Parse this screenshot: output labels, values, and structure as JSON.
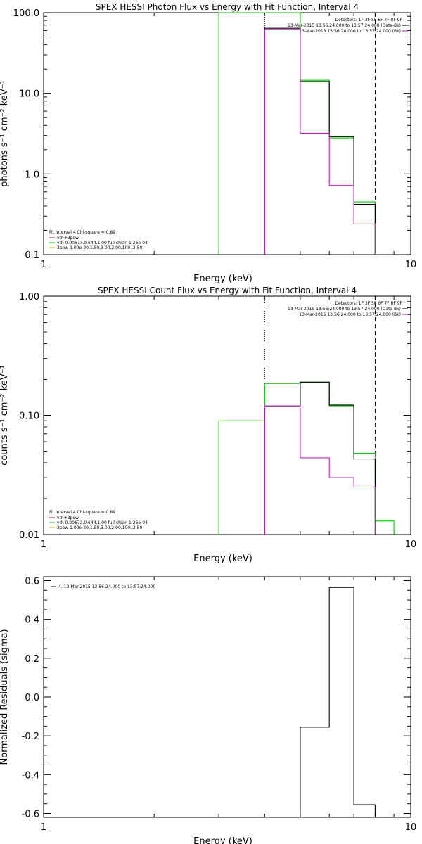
{
  "chart_data": [
    {
      "type": "line",
      "title": "SPEX HESSI Photon Flux vs Energy with Fit Function, Interval 4",
      "xlabel": "Energy (keV)",
      "ylabel": "photons s⁻¹ cm⁻² keV⁻¹",
      "xscale": "log",
      "yscale": "log",
      "xlim": [
        1,
        10
      ],
      "ylim": [
        0.1,
        100
      ],
      "xticks": [
        {
          "value": 1,
          "label": "1"
        },
        {
          "value": 10,
          "label": "10"
        }
      ],
      "yticks": [
        {
          "value": 0.1,
          "label": "0.1"
        },
        {
          "value": 1,
          "label": "1.0"
        },
        {
          "value": 10,
          "label": "10.0"
        },
        {
          "value": 100,
          "label": "100.0"
        }
      ],
      "vlines": [
        {
          "x": 4.0,
          "style": "dotted"
        },
        {
          "x": 8.0,
          "style": "dashed"
        }
      ],
      "legend_top_right": {
        "detectors": "Detectors: 1F 3F 5F 6F 7F 8F 9F",
        "entries": [
          {
            "label": "13-Mar-2015 13:56:24.000 to 13:57:24.000 (Data-Bk)",
            "color": "#000000"
          },
          {
            "label": "13-Mar-2015 13:56:24.000 to 13:57:24.000 (Bk)",
            "color": "#c020c0"
          }
        ]
      },
      "legend_bottom_left": {
        "header": "Fit Interval  4    Chi-square = 0.89",
        "entries": [
          {
            "label": "vth+3pow",
            "color": "#d02020"
          },
          {
            "label": "vth 0.00673,0.644,1.00   full chian 1.26e-04",
            "color": "#00c800"
          },
          {
            "label": "3pow 1.00e-20,1.50,3.00,2.00,100.,2.50",
            "color": "#e0b000"
          }
        ]
      },
      "series": [
        {
          "color": "#00c800",
          "edges": [
            3.0,
            4.0,
            5.0,
            6.0,
            7.0,
            8.0
          ],
          "values": [
            100,
            100,
            14.5,
            2.8,
            0.45
          ]
        },
        {
          "color": "#000000",
          "edges": [
            4.0,
            5.0,
            6.0,
            7.0,
            8.0
          ],
          "values": [
            64,
            14,
            2.9,
            0.42
          ]
        },
        {
          "color": "#c020c0",
          "edges": [
            4.0,
            5.0,
            6.0,
            7.0,
            8.0
          ],
          "values": [
            62,
            3.2,
            0.72,
            0.24
          ]
        }
      ]
    },
    {
      "type": "line",
      "title": "SPEX HESSI Count Flux vs Energy with Fit Function, Interval 4",
      "xlabel": "Energy (keV)",
      "ylabel": "counts s⁻¹ cm⁻² keV⁻¹",
      "xscale": "log",
      "yscale": "log",
      "xlim": [
        1,
        10
      ],
      "ylim": [
        0.01,
        1
      ],
      "xticks": [
        {
          "value": 1,
          "label": "1"
        },
        {
          "value": 10,
          "label": "10"
        }
      ],
      "yticks": [
        {
          "value": 0.01,
          "label": "0.01"
        },
        {
          "value": 0.1,
          "label": "0.10"
        },
        {
          "value": 1,
          "label": "1.00"
        }
      ],
      "vlines": [
        {
          "x": 4.0,
          "style": "dotted"
        },
        {
          "x": 8.0,
          "style": "dashed"
        }
      ],
      "legend_top_right": {
        "detectors": "Detectors: 1F 3F 5F 6F 7F 8F 9F",
        "entries": [
          {
            "label": "13-Mar-2015 13:56:24.000 to 13:57:24.000 (Data-Bk)",
            "color": "#000000"
          },
          {
            "label": "13-Mar-2015 13:56:24.000 to 13:57:24.000 (Bk)",
            "color": "#c020c0"
          }
        ]
      },
      "legend_bottom_left": {
        "header": "Fit Interval  4    Chi-square = 0.89",
        "entries": [
          {
            "label": "vth+3pow",
            "color": "#d02020"
          },
          {
            "label": "vth 0.00673,0.644,1.00   full chian 1.26e-04",
            "color": "#00c800"
          },
          {
            "label": "3pow 1.00e-20,1.50,3.00,2.00,100.,2.50",
            "color": "#e0b000"
          }
        ]
      },
      "series": [
        {
          "color": "#00c800",
          "edges": [
            3.0,
            4.0,
            5.0,
            6.0,
            7.0,
            8.0,
            9.0
          ],
          "values": [
            0.09,
            0.185,
            0.19,
            0.12,
            0.048,
            0.013
          ]
        },
        {
          "color": "#000000",
          "edges": [
            4.0,
            5.0,
            6.0,
            7.0,
            8.0
          ],
          "values": [
            0.118,
            0.19,
            0.122,
            0.043
          ]
        },
        {
          "color": "#c020c0",
          "edges": [
            4.0,
            5.0,
            6.0,
            7.0,
            8.0
          ],
          "values": [
            0.12,
            0.044,
            0.03,
            0.025
          ]
        }
      ]
    },
    {
      "type": "line",
      "title": "",
      "xlabel": "Energy (keV)",
      "ylabel": "Normalized Residuals (sigma)",
      "xscale": "log",
      "yscale": "linear",
      "xlim": [
        1,
        10
      ],
      "ylim": [
        -0.62,
        0.62
      ],
      "xticks": [
        {
          "value": 1,
          "label": "1"
        },
        {
          "value": 10,
          "label": "10"
        }
      ],
      "yticks": [
        {
          "value": -0.6,
          "label": "-0.6"
        },
        {
          "value": -0.4,
          "label": "-0.4"
        },
        {
          "value": -0.2,
          "label": "-0.2"
        },
        {
          "value": 0.0,
          "label": "0.0"
        },
        {
          "value": 0.2,
          "label": "0.2"
        },
        {
          "value": 0.4,
          "label": "0.4"
        },
        {
          "value": 0.6,
          "label": "0.6"
        }
      ],
      "legend_top_left": {
        "entries": [
          {
            "label": "4. 13-Mar-2015 13:56:24.000 to 13:57:24.000",
            "color": "#000000"
          }
        ]
      },
      "series": [
        {
          "color": "#000000",
          "edges": [
            5.0,
            6.0,
            7.0,
            8.0
          ],
          "values": [
            -0.155,
            0.565,
            -0.555
          ],
          "baseline": -0.62
        }
      ]
    }
  ]
}
